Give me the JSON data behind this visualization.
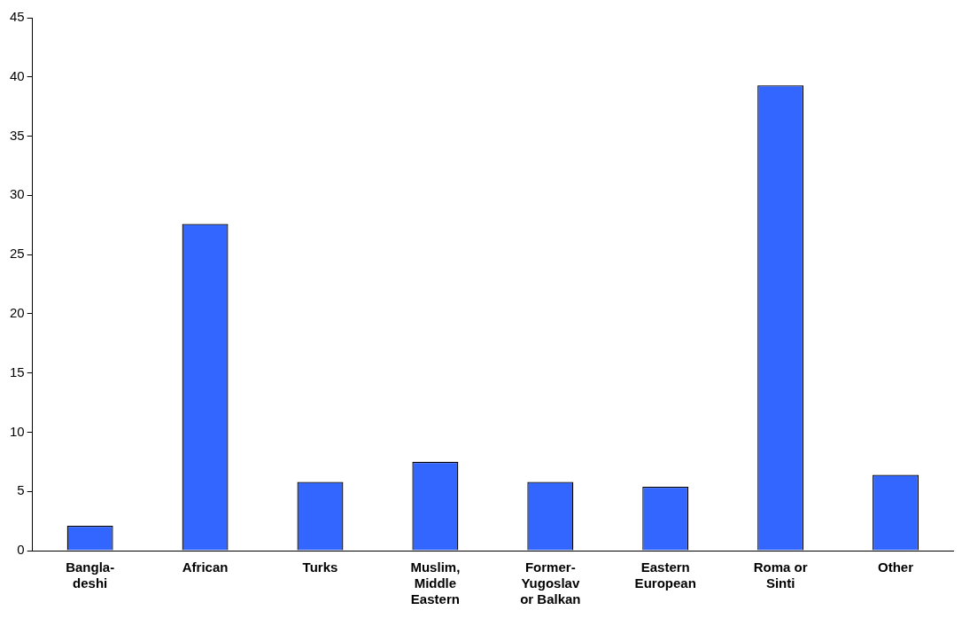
{
  "chart_data": {
    "type": "bar",
    "categories": [
      "Bangla-deshi",
      "African",
      "Turks",
      "Muslim, Middle Eastern",
      "Former-Yugoslav or Balkan",
      "Eastern European",
      "Roma or Sinti",
      "Other"
    ],
    "values": [
      2.1,
      27.6,
      5.8,
      7.5,
      5.8,
      5.4,
      39.3,
      6.4
    ],
    "color": "#3366ff",
    "ylim": [
      0,
      45
    ],
    "yticks": [
      0,
      5,
      10,
      15,
      20,
      25,
      30,
      35,
      40,
      45
    ],
    "grid": false,
    "legend": false
  }
}
